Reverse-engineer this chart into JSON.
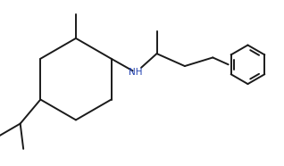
{
  "bg_color": "#ffffff",
  "line_color": "#1a1a1a",
  "line_width": 1.4,
  "nh_label": "NH",
  "nh_color": "#2040b0",
  "font_size_nh": 7.5,
  "fig_width": 3.18,
  "fig_height": 1.86,
  "dpi": 100
}
